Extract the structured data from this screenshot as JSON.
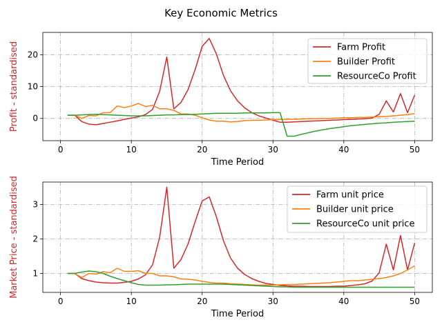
{
  "figure": {
    "title": "Key Economic Metrics"
  },
  "colors": {
    "farm": "#d62728",
    "builder": "#ff7f0e",
    "resourceco": "#2ca02c",
    "ylabel": "#d62728"
  },
  "chart_data": [
    {
      "type": "line",
      "title": "",
      "xlabel": "Time Period",
      "ylabel": "Profit - standardised",
      "xlim": [
        -2.5,
        52.5
      ],
      "ylim": [
        -7,
        27
      ],
      "xticks": [
        0,
        10,
        20,
        30,
        40,
        50
      ],
      "yticks": [
        0,
        10,
        20
      ],
      "grid": true,
      "legend_position": "upper right",
      "x": [
        1,
        2,
        3,
        4,
        5,
        6,
        7,
        8,
        9,
        10,
        11,
        12,
        13,
        14,
        15,
        16,
        17,
        18,
        19,
        20,
        21,
        22,
        23,
        24,
        25,
        26,
        27,
        28,
        29,
        30,
        31,
        32,
        33,
        34,
        35,
        36,
        37,
        38,
        39,
        40,
        41,
        42,
        43,
        44,
        45,
        46,
        47,
        48,
        49,
        50
      ],
      "series": [
        {
          "name": "Farm Profit",
          "color_key": "farm",
          "values": [
            1.0,
            1.0,
            -1.0,
            -1.8,
            -2.0,
            -1.6,
            -1.2,
            -0.8,
            -0.3,
            0.1,
            0.5,
            1.2,
            2.8,
            8.5,
            19.3,
            3.0,
            5.0,
            9.0,
            15.3,
            22.6,
            25.1,
            20.3,
            13.5,
            8.7,
            5.5,
            3.3,
            1.8,
            0.8,
            0.1,
            -0.6,
            -1.2,
            -1.2,
            -1.1,
            -1.0,
            -0.9,
            -0.8,
            -0.7,
            -0.6,
            -0.5,
            -0.4,
            -0.3,
            -0.2,
            -0.1,
            0.1,
            1.3,
            5.5,
            2.0,
            7.8,
            1.8,
            7.3
          ]
        },
        {
          "name": "Builder Profit",
          "color_key": "builder",
          "values": [
            1.0,
            1.0,
            0.0,
            0.9,
            0.8,
            1.8,
            1.8,
            3.9,
            3.4,
            3.9,
            4.7,
            3.7,
            4.1,
            3.0,
            3.0,
            2.5,
            1.4,
            1.4,
            1.0,
            0.2,
            -0.5,
            -0.9,
            -0.9,
            -1.1,
            -1.0,
            -0.7,
            -0.6,
            -0.6,
            -0.5,
            -0.4,
            -0.4,
            -0.3,
            -0.3,
            -0.2,
            -0.1,
            -0.1,
            0.0,
            0.0,
            0.1,
            0.2,
            0.2,
            0.3,
            0.3,
            0.4,
            0.5,
            0.6,
            0.8,
            1.0,
            1.2,
            1.5
          ]
        },
        {
          "name": "ResourceCo Profit",
          "color_key": "resourceco",
          "values": [
            1.0,
            1.0,
            1.1,
            1.2,
            1.3,
            1.2,
            1.1,
            1.0,
            0.9,
            0.8,
            0.8,
            0.8,
            0.9,
            1.0,
            1.1,
            1.1,
            1.2,
            1.2,
            1.3,
            1.4,
            1.5,
            1.6,
            1.6,
            1.6,
            1.6,
            1.7,
            1.7,
            1.7,
            1.7,
            1.8,
            1.8,
            -5.6,
            -5.6,
            -5.0,
            -4.5,
            -4.0,
            -3.6,
            -3.2,
            -2.9,
            -2.6,
            -2.3,
            -2.1,
            -1.9,
            -1.7,
            -1.5,
            -1.4,
            -1.2,
            -1.1,
            -1.0,
            -0.9
          ]
        }
      ]
    },
    {
      "type": "line",
      "title": "",
      "xlabel": "Time Period",
      "ylabel": "Market Price - standardised",
      "xlim": [
        -2.5,
        52.5
      ],
      "ylim": [
        0.45,
        3.65
      ],
      "xticks": [
        0,
        10,
        20,
        30,
        40,
        50
      ],
      "yticks": [
        1,
        2,
        3
      ],
      "grid": true,
      "legend_position": "upper right",
      "x": [
        1,
        2,
        3,
        4,
        5,
        6,
        7,
        8,
        9,
        10,
        11,
        12,
        13,
        14,
        15,
        16,
        17,
        18,
        19,
        20,
        21,
        22,
        23,
        24,
        25,
        26,
        27,
        28,
        29,
        30,
        31,
        32,
        33,
        34,
        35,
        36,
        37,
        38,
        39,
        40,
        41,
        42,
        43,
        44,
        45,
        46,
        47,
        48,
        49,
        50
      ],
      "series": [
        {
          "name": "Farm unit price",
          "color_key": "farm",
          "values": [
            1.0,
            1.0,
            0.85,
            0.79,
            0.75,
            0.73,
            0.72,
            0.72,
            0.74,
            0.77,
            0.84,
            0.96,
            1.25,
            2.05,
            3.5,
            1.15,
            1.4,
            1.85,
            2.5,
            3.1,
            3.22,
            2.65,
            1.95,
            1.45,
            1.15,
            0.97,
            0.85,
            0.77,
            0.71,
            0.68,
            0.65,
            0.64,
            0.63,
            0.63,
            0.62,
            0.62,
            0.62,
            0.62,
            0.63,
            0.63,
            0.65,
            0.67,
            0.7,
            0.78,
            1.02,
            1.85,
            1.1,
            2.1,
            1.1,
            1.88
          ]
        },
        {
          "name": "Builder unit price",
          "color_key": "builder",
          "values": [
            1.0,
            1.0,
            0.88,
            1.0,
            0.98,
            1.05,
            1.02,
            1.15,
            1.06,
            1.06,
            1.08,
            1.0,
            1.0,
            0.93,
            0.93,
            0.9,
            0.84,
            0.83,
            0.81,
            0.77,
            0.74,
            0.72,
            0.72,
            0.7,
            0.69,
            0.68,
            0.67,
            0.66,
            0.66,
            0.66,
            0.67,
            0.68,
            0.68,
            0.69,
            0.7,
            0.71,
            0.72,
            0.73,
            0.75,
            0.77,
            0.79,
            0.79,
            0.81,
            0.83,
            0.85,
            0.88,
            0.93,
            1.0,
            1.1,
            1.22
          ]
        },
        {
          "name": "ResourceCo unit price",
          "color_key": "resourceco",
          "values": [
            1.0,
            1.0,
            1.04,
            1.07,
            1.05,
            1.0,
            0.92,
            0.85,
            0.79,
            0.73,
            0.68,
            0.66,
            0.66,
            0.66,
            0.67,
            0.67,
            0.68,
            0.69,
            0.69,
            0.69,
            0.69,
            0.69,
            0.69,
            0.68,
            0.67,
            0.66,
            0.65,
            0.64,
            0.63,
            0.62,
            0.61,
            0.61,
            0.6,
            0.6,
            0.6,
            0.6,
            0.6,
            0.6,
            0.6,
            0.6,
            0.6,
            0.6,
            0.6,
            0.6,
            0.6,
            0.6,
            0.6,
            0.6,
            0.6,
            0.6
          ]
        }
      ]
    }
  ]
}
